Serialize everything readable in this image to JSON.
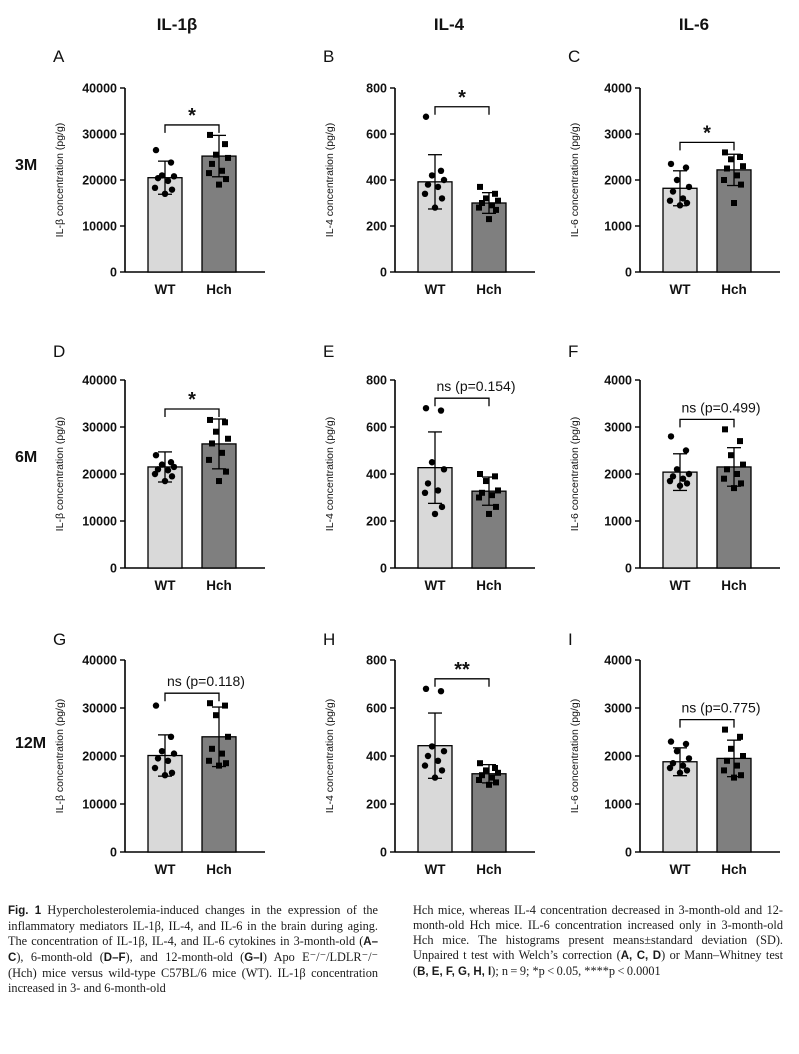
{
  "col_headers": [
    "IL-1β",
    "IL-4",
    "IL-6"
  ],
  "row_headers": [
    "3M",
    "6M",
    "12M"
  ],
  "chart_data": [
    {
      "panel": "A",
      "type": "bar",
      "categories": [
        "WT",
        "Hch"
      ],
      "values": [
        20500,
        25200
      ],
      "sd": [
        3600,
        4500
      ],
      "points": [
        [
          26500,
          23800,
          21000,
          20800,
          20400,
          19800,
          18300,
          17900,
          17000
        ],
        [
          29800,
          27800,
          25500,
          24800,
          23500,
          22000,
          21500,
          20200,
          19000
        ]
      ],
      "ylabel": "IL-β concentration (pg/g)",
      "ylim": [
        0,
        40000
      ],
      "yticks": [
        0,
        10000,
        20000,
        30000,
        40000
      ],
      "sig": "*"
    },
    {
      "panel": "B",
      "type": "bar",
      "categories": [
        "WT",
        "Hch"
      ],
      "values": [
        392,
        300
      ],
      "sd": [
        118,
        45
      ],
      "points": [
        [
          675,
          440,
          420,
          400,
          380,
          370,
          340,
          320,
          280
        ],
        [
          370,
          340,
          320,
          310,
          300,
          290,
          280,
          270,
          230
        ]
      ],
      "ylabel": "IL-4 concentration (pg/g)",
      "ylim": [
        0,
        800
      ],
      "yticks": [
        0,
        200,
        400,
        600,
        800
      ],
      "sig": "*"
    },
    {
      "panel": "C",
      "type": "bar",
      "categories": [
        "WT",
        "Hch"
      ],
      "values": [
        1820,
        2220
      ],
      "sd": [
        380,
        340
      ],
      "points": [
        [
          2350,
          2270,
          2000,
          1850,
          1750,
          1600,
          1550,
          1500,
          1450
        ],
        [
          2600,
          2500,
          2450,
          2300,
          2250,
          2100,
          2000,
          1900,
          1500
        ]
      ],
      "ylabel": "IL-6 concentration (pg/g)",
      "ylim": [
        0,
        4000
      ],
      "yticks": [
        0,
        1000,
        2000,
        3000,
        4000
      ],
      "sig": "*"
    },
    {
      "panel": "D",
      "type": "bar",
      "categories": [
        "WT",
        "Hch"
      ],
      "values": [
        21500,
        26400
      ],
      "sd": [
        3200,
        5300
      ],
      "points": [
        [
          24000,
          22500,
          22000,
          21500,
          21000,
          20800,
          20000,
          19500,
          18500
        ],
        [
          31500,
          31000,
          29000,
          27500,
          26500,
          24500,
          23000,
          20500,
          18500
        ]
      ],
      "ylabel": "IL-β concentration (pg/g)",
      "ylim": [
        0,
        40000
      ],
      "yticks": [
        0,
        10000,
        20000,
        30000,
        40000
      ],
      "sig": "*"
    },
    {
      "panel": "E",
      "type": "bar",
      "categories": [
        "WT",
        "Hch"
      ],
      "values": [
        427,
        327
      ],
      "sd": [
        152,
        60
      ],
      "points": [
        [
          680,
          670,
          450,
          420,
          360,
          330,
          320,
          260,
          230
        ],
        [
          400,
          390,
          370,
          330,
          320,
          310,
          300,
          260,
          230
        ]
      ],
      "ylabel": "IL-4 concentration (pg/g)",
      "ylim": [
        0,
        800
      ],
      "yticks": [
        0,
        200,
        400,
        600,
        800
      ],
      "sig": "ns (p=0.154)"
    },
    {
      "panel": "F",
      "type": "bar",
      "categories": [
        "WT",
        "Hch"
      ],
      "values": [
        2040,
        2150
      ],
      "sd": [
        390,
        410
      ],
      "points": [
        [
          2800,
          2500,
          2100,
          2000,
          1950,
          1900,
          1850,
          1800,
          1750
        ],
        [
          2950,
          2700,
          2400,
          2200,
          2100,
          2000,
          1900,
          1800,
          1700
        ]
      ],
      "ylabel": "IL-6 concentration (pg/g)",
      "ylim": [
        0,
        4000
      ],
      "yticks": [
        0,
        1000,
        2000,
        3000,
        4000
      ],
      "sig": "ns (p=0.499)"
    },
    {
      "panel": "G",
      "type": "bar",
      "categories": [
        "WT",
        "Hch"
      ],
      "values": [
        20100,
        24000
      ],
      "sd": [
        4300,
        6200
      ],
      "points": [
        [
          30500,
          24000,
          21000,
          20500,
          19500,
          19000,
          17500,
          16500,
          16000
        ],
        [
          31000,
          30500,
          28500,
          24000,
          21500,
          20500,
          19000,
          18500,
          18000
        ]
      ],
      "ylabel": "IL-β concentration (pg/g)",
      "ylim": [
        0,
        40000
      ],
      "yticks": [
        0,
        10000,
        20000,
        30000,
        40000
      ],
      "sig": "ns (p=0.118)"
    },
    {
      "panel": "H",
      "type": "bar",
      "categories": [
        "WT",
        "Hch"
      ],
      "values": [
        443,
        326
      ],
      "sd": [
        136,
        38
      ],
      "points": [
        [
          680,
          670,
          440,
          420,
          400,
          380,
          360,
          340,
          310
        ],
        [
          370,
          350,
          340,
          330,
          320,
          310,
          300,
          290,
          280
        ]
      ],
      "ylabel": "IL-4 concentration (pg/g)",
      "ylim": [
        0,
        800
      ],
      "yticks": [
        0,
        200,
        400,
        600,
        800
      ],
      "sig": "**"
    },
    {
      "panel": "I",
      "type": "bar",
      "categories": [
        "WT",
        "Hch"
      ],
      "values": [
        1880,
        1950
      ],
      "sd": [
        290,
        380
      ],
      "points": [
        [
          2300,
          2250,
          2100,
          1950,
          1850,
          1800,
          1750,
          1700,
          1650
        ],
        [
          2550,
          2400,
          2150,
          2000,
          1900,
          1800,
          1700,
          1600,
          1550
        ]
      ],
      "ylabel": "IL-6 concentration (pg/g)",
      "ylim": [
        0,
        4000
      ],
      "yticks": [
        0,
        1000,
        2000,
        3000,
        4000
      ],
      "sig": "ns (p=0.775)"
    }
  ],
  "colors": {
    "wt_bar": "#d9d9d9",
    "hch_bar": "#7f7f7f",
    "stroke": "#000000"
  },
  "caption": {
    "fig_label": "Fig. 1",
    "left": [
      {
        "t": "Hypercholesterolemia-induced changes in the expression of the inflammatory mediators IL-1β, IL-4, and IL-6 in the brain during aging. The concentration of IL-1β, IL-4, and IL-6 cytokines in 3-month-old ("
      },
      {
        "b": "A–C"
      },
      {
        "t": "), 6-month-old ("
      },
      {
        "b": "D–F"
      },
      {
        "t": "), and 12-month-old ("
      },
      {
        "b": "G–I"
      },
      {
        "t": ") Apo E⁻/⁻/LDLR⁻/⁻ (Hch) mice versus wild-type C57BL/6 mice (WT). IL-1β concentration increased in 3- and 6-month-old"
      }
    ],
    "right": [
      {
        "t": "Hch mice, whereas IL-4 concentration decreased in 3-month-old and 12-month-old Hch mice. IL-6 concentration increased only in 3-month-old Hch mice. The histograms present means±standard deviation (SD). Unpaired t test with Welch’s correction ("
      },
      {
        "b": "A, C, D"
      },
      {
        "t": ") or Mann–Whitney test ("
      },
      {
        "b": "B, E, F, G, H, I"
      },
      {
        "t": "); n = 9; *p < 0.05, ****p < 0.0001"
      }
    ]
  }
}
